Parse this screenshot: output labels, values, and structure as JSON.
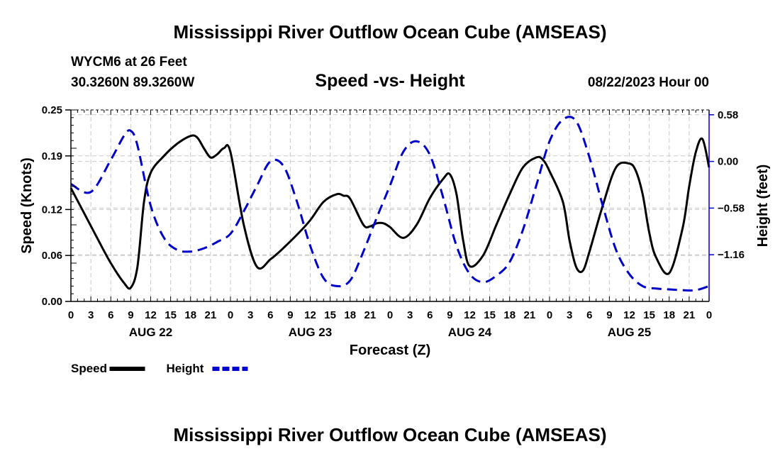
{
  "page": {
    "main_title": "Mississippi River Outflow Ocean Cube (AMSEAS)",
    "bottom_title": "Mississippi River Outflow Ocean Cube (AMSEAS)",
    "station": "WYCM6 at 26 Feet",
    "coords": "30.3260N  89.3260W",
    "subtitle": "Speed -vs- Height",
    "datetime": "08/22/2023 Hour 00"
  },
  "chart_data": {
    "type": "line",
    "title": "Speed -vs- Height",
    "xlabel": "Forecast (Z)",
    "ylabel": "Speed (Knots)",
    "y2label": "Height (feet)",
    "xlim": [
      0,
      96
    ],
    "ylim": [
      0,
      0.25
    ],
    "y2lim": [
      -1.74,
      0.64
    ],
    "x_tick_labels": [
      "0",
      "3",
      "6",
      "9",
      "12",
      "15",
      "18",
      "21",
      "0",
      "3",
      "6",
      "9",
      "12",
      "15",
      "18",
      "21",
      "0",
      "3",
      "6",
      "9",
      "12",
      "15",
      "18",
      "21",
      "0",
      "3",
      "6",
      "9",
      "12",
      "15",
      "18",
      "21",
      "0"
    ],
    "day_labels": [
      {
        "label": "AUG 22",
        "x": 12
      },
      {
        "label": "AUG 23",
        "x": 36
      },
      {
        "label": "AUG 24",
        "x": 60
      },
      {
        "label": "AUG 25",
        "x": 84
      }
    ],
    "y_ticks": [
      0.0,
      0.06,
      0.12,
      0.19,
      0.25
    ],
    "y_tick_labels": [
      "0.00",
      "0.06",
      "0.12",
      "0.19",
      "0.25"
    ],
    "y2_ticks": [
      -1.16,
      -0.58,
      0.0,
      0.58
    ],
    "y2_tick_labels": [
      "−1.16",
      "−0.58",
      "0.00",
      "0.58"
    ],
    "grid": true,
    "legend": [
      {
        "name": "Speed",
        "color": "#000000",
        "dash": "solid"
      },
      {
        "name": "Height",
        "color": "#0000cc",
        "dash": "dashed"
      }
    ],
    "series": [
      {
        "name": "Speed",
        "axis": "left",
        "color": "#000000",
        "x": [
          0,
          2,
          4,
          6,
          8,
          9,
          10,
          11,
          12,
          14,
          16,
          18,
          19,
          20,
          21,
          22,
          23,
          24,
          26,
          28,
          30,
          31,
          32,
          34,
          36,
          38,
          40,
          41,
          42,
          44,
          45,
          46,
          47,
          48,
          50,
          52,
          54,
          56,
          57,
          58,
          59,
          60,
          62,
          64,
          66,
          68,
          70,
          71,
          72,
          74,
          75,
          76,
          77,
          78,
          80,
          82,
          84,
          85,
          86,
          87,
          88,
          90,
          92,
          93,
          94,
          95,
          96
        ],
        "y": [
          0.148,
          0.115,
          0.082,
          0.05,
          0.024,
          0.018,
          0.045,
          0.13,
          0.168,
          0.19,
          0.206,
          0.216,
          0.214,
          0.2,
          0.188,
          0.192,
          0.2,
          0.195,
          0.1,
          0.045,
          0.055,
          0.062,
          0.07,
          0.087,
          0.106,
          0.13,
          0.14,
          0.138,
          0.134,
          0.1,
          0.098,
          0.102,
          0.102,
          0.097,
          0.083,
          0.1,
          0.135,
          0.16,
          0.166,
          0.14,
          0.08,
          0.046,
          0.06,
          0.1,
          0.14,
          0.175,
          0.188,
          0.185,
          0.17,
          0.13,
          0.08,
          0.045,
          0.04,
          0.065,
          0.125,
          0.175,
          0.18,
          0.17,
          0.14,
          0.09,
          0.058,
          0.037,
          0.095,
          0.15,
          0.195,
          0.212,
          0.175
        ]
      },
      {
        "name": "Height",
        "axis": "right",
        "color": "#0000cc",
        "x": [
          0,
          3,
          6,
          8,
          9,
          10,
          12,
          14,
          16,
          18,
          20,
          22,
          24,
          26,
          28,
          30,
          32,
          34,
          36,
          38,
          40,
          42,
          44,
          46,
          48,
          50,
          52,
          54,
          56,
          58,
          60,
          62,
          64,
          66,
          68,
          70,
          72,
          74,
          76,
          78,
          80,
          82,
          84,
          86,
          88,
          90,
          92,
          94,
          96
        ],
        "y": [
          -0.28,
          -0.38,
          0.02,
          0.32,
          0.38,
          0.2,
          -0.55,
          -0.95,
          -1.1,
          -1.12,
          -1.08,
          -1.0,
          -0.9,
          -0.62,
          -0.3,
          0.0,
          -0.06,
          -0.5,
          -1.05,
          -1.45,
          -1.55,
          -1.48,
          -1.12,
          -0.7,
          -0.3,
          0.12,
          0.25,
          0.08,
          -0.45,
          -1.05,
          -1.4,
          -1.5,
          -1.42,
          -1.25,
          -0.85,
          -0.3,
          0.25,
          0.52,
          0.5,
          0.05,
          -0.55,
          -1.1,
          -1.4,
          -1.55,
          -1.58,
          -1.59,
          -1.6,
          -1.6,
          -1.55
        ]
      }
    ]
  }
}
